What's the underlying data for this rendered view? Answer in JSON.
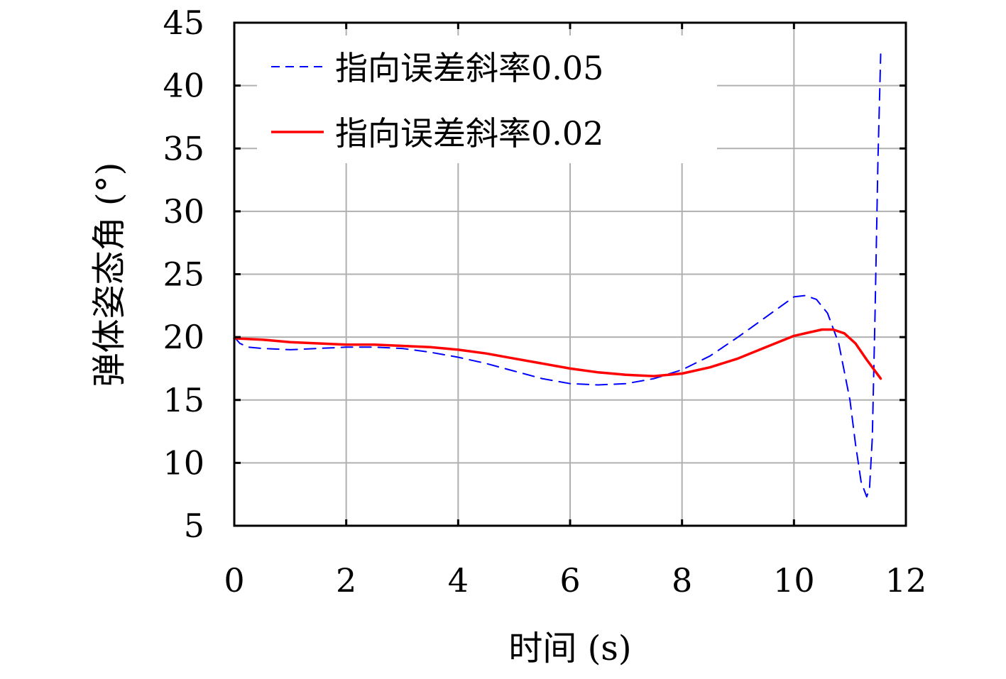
{
  "chart_data": {
    "type": "line",
    "xlabel": "时间 (s)",
    "ylabel": "弹体姿态角 (°)",
    "xlim": [
      0,
      12
    ],
    "ylim": [
      5,
      45
    ],
    "xticks": [
      "0",
      "2",
      "4",
      "6",
      "8",
      "10",
      "12"
    ],
    "yticks": [
      "5",
      "10",
      "15",
      "20",
      "25",
      "30",
      "35",
      "40",
      "45"
    ],
    "grid": true,
    "legend_position": "top-left",
    "series": [
      {
        "name": "指向误差斜率0.05",
        "color": "#0000ff",
        "style": "dashed",
        "x": [
          0,
          0.1,
          0.25,
          0.5,
          1,
          1.5,
          2,
          2.5,
          3,
          3.5,
          4,
          4.5,
          5,
          5.5,
          6,
          6.5,
          7,
          7.5,
          8,
          8.5,
          9,
          9.5,
          10,
          10.2,
          10.4,
          10.6,
          10.8,
          11.0,
          11.1,
          11.2,
          11.3,
          11.35,
          11.4,
          11.45,
          11.5,
          11.55
        ],
        "y": [
          20.0,
          19.5,
          19.2,
          19.1,
          19.0,
          19.1,
          19.2,
          19.2,
          19.1,
          18.8,
          18.4,
          17.9,
          17.3,
          16.7,
          16.3,
          16.2,
          16.3,
          16.7,
          17.4,
          18.5,
          20.0,
          21.6,
          23.2,
          23.3,
          23.0,
          21.9,
          19.5,
          15.0,
          11.5,
          8.5,
          7.3,
          8.0,
          12.0,
          22.0,
          34.0,
          42.5
        ]
      },
      {
        "name": "指向误差斜率0.02",
        "color": "#ff0000",
        "style": "solid",
        "x": [
          0,
          0.5,
          1,
          1.5,
          2,
          2.5,
          3,
          3.5,
          4,
          4.5,
          5,
          5.5,
          6,
          6.5,
          7,
          7.5,
          8,
          8.5,
          9,
          9.5,
          10,
          10.3,
          10.5,
          10.7,
          10.9,
          11.1,
          11.3,
          11.55
        ],
        "y": [
          19.9,
          19.8,
          19.6,
          19.5,
          19.4,
          19.4,
          19.3,
          19.2,
          19.0,
          18.7,
          18.3,
          17.9,
          17.5,
          17.2,
          17.0,
          16.9,
          17.1,
          17.6,
          18.3,
          19.2,
          20.1,
          20.4,
          20.6,
          20.6,
          20.3,
          19.5,
          18.2,
          16.7
        ]
      }
    ]
  }
}
